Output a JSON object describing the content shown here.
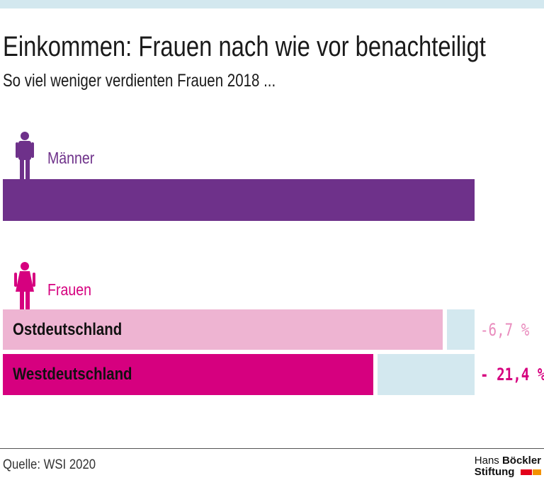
{
  "title": "Einkommen: Frauen nach wie vor benachteiligt",
  "subtitle": "So viel weniger verdienten Frauen 2018 ...",
  "legend": {
    "men": "Männer",
    "women": "Frauen"
  },
  "colors": {
    "men": "#6e318a",
    "ost": "#eeb4d2",
    "west": "#d6007f",
    "gap": "#d3e8ef",
    "ost_label": "#e98bbd",
    "west_label": "#d6007f"
  },
  "chart_data": {
    "type": "bar",
    "orientation": "horizontal",
    "categories": [
      "Männer",
      "Ostdeutschland",
      "Westdeutschland"
    ],
    "values": [
      100,
      93.3,
      78.6
    ],
    "gap_labels": [
      "",
      "-6,7 %",
      "- 21,4 %"
    ],
    "xlim": [
      0,
      100
    ]
  },
  "source": "Quelle: WSI 2020",
  "logo": {
    "line1a": "Hans ",
    "line1b": "Böckler",
    "line2": "Stiftung"
  }
}
